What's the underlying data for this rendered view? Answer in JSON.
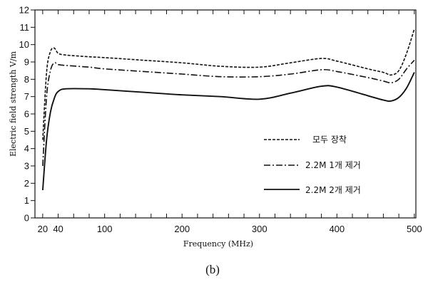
{
  "chart_data": {
    "type": "line",
    "title": "",
    "xlabel": "Frequency (MHz)",
    "ylabel": "Electric field strength V/m",
    "xlim": [
      10,
      502
    ],
    "ylim": [
      0,
      12
    ],
    "x_tick_labels": [
      {
        "x": 20,
        "label": "20"
      },
      {
        "x": 40,
        "label": "40"
      },
      {
        "x": 100,
        "label": "100"
      },
      {
        "x": 200,
        "label": "200"
      },
      {
        "x": 300,
        "label": "300"
      },
      {
        "x": 400,
        "label": "400"
      },
      {
        "x": 500,
        "label": "500"
      }
    ],
    "y_ticks": [
      0,
      1,
      2,
      3,
      4,
      5,
      6,
      7,
      8,
      9,
      10,
      11,
      12
    ],
    "grid": false,
    "legend_position": "center-right",
    "caption": "(b)",
    "series": [
      {
        "name": "모두 장착",
        "style": "dashed",
        "x": [
          20,
          25,
          30,
          35,
          40,
          50,
          80,
          100,
          150,
          200,
          250,
          300,
          340,
          380,
          400,
          440,
          460,
          470,
          480,
          490,
          500
        ],
        "y": [
          4.5,
          8.4,
          9.6,
          9.8,
          9.5,
          9.4,
          9.3,
          9.25,
          9.1,
          8.95,
          8.75,
          8.7,
          8.95,
          9.2,
          9.05,
          8.6,
          8.4,
          8.25,
          8.5,
          9.5,
          10.9
        ]
      },
      {
        "name": "2.2M  1개 제거",
        "style": "dash-dot",
        "x": [
          20,
          25,
          30,
          35,
          40,
          50,
          80,
          100,
          150,
          200,
          250,
          300,
          340,
          380,
          400,
          440,
          460,
          470,
          480,
          490,
          500
        ],
        "y": [
          3.0,
          7.0,
          8.5,
          8.95,
          8.85,
          8.8,
          8.7,
          8.6,
          8.45,
          8.3,
          8.15,
          8.15,
          8.3,
          8.55,
          8.45,
          8.1,
          7.9,
          7.8,
          8.0,
          8.6,
          9.1
        ]
      },
      {
        "name": "2.2M  2개 제거",
        "style": "solid",
        "x": [
          20,
          25,
          30,
          35,
          40,
          50,
          80,
          100,
          150,
          200,
          250,
          300,
          340,
          380,
          400,
          440,
          460,
          470,
          480,
          490,
          500
        ],
        "y": [
          1.6,
          4.5,
          6.1,
          6.9,
          7.3,
          7.45,
          7.45,
          7.4,
          7.25,
          7.1,
          7.0,
          6.85,
          7.2,
          7.6,
          7.55,
          7.05,
          6.8,
          6.75,
          6.95,
          7.5,
          8.4
        ]
      }
    ]
  }
}
